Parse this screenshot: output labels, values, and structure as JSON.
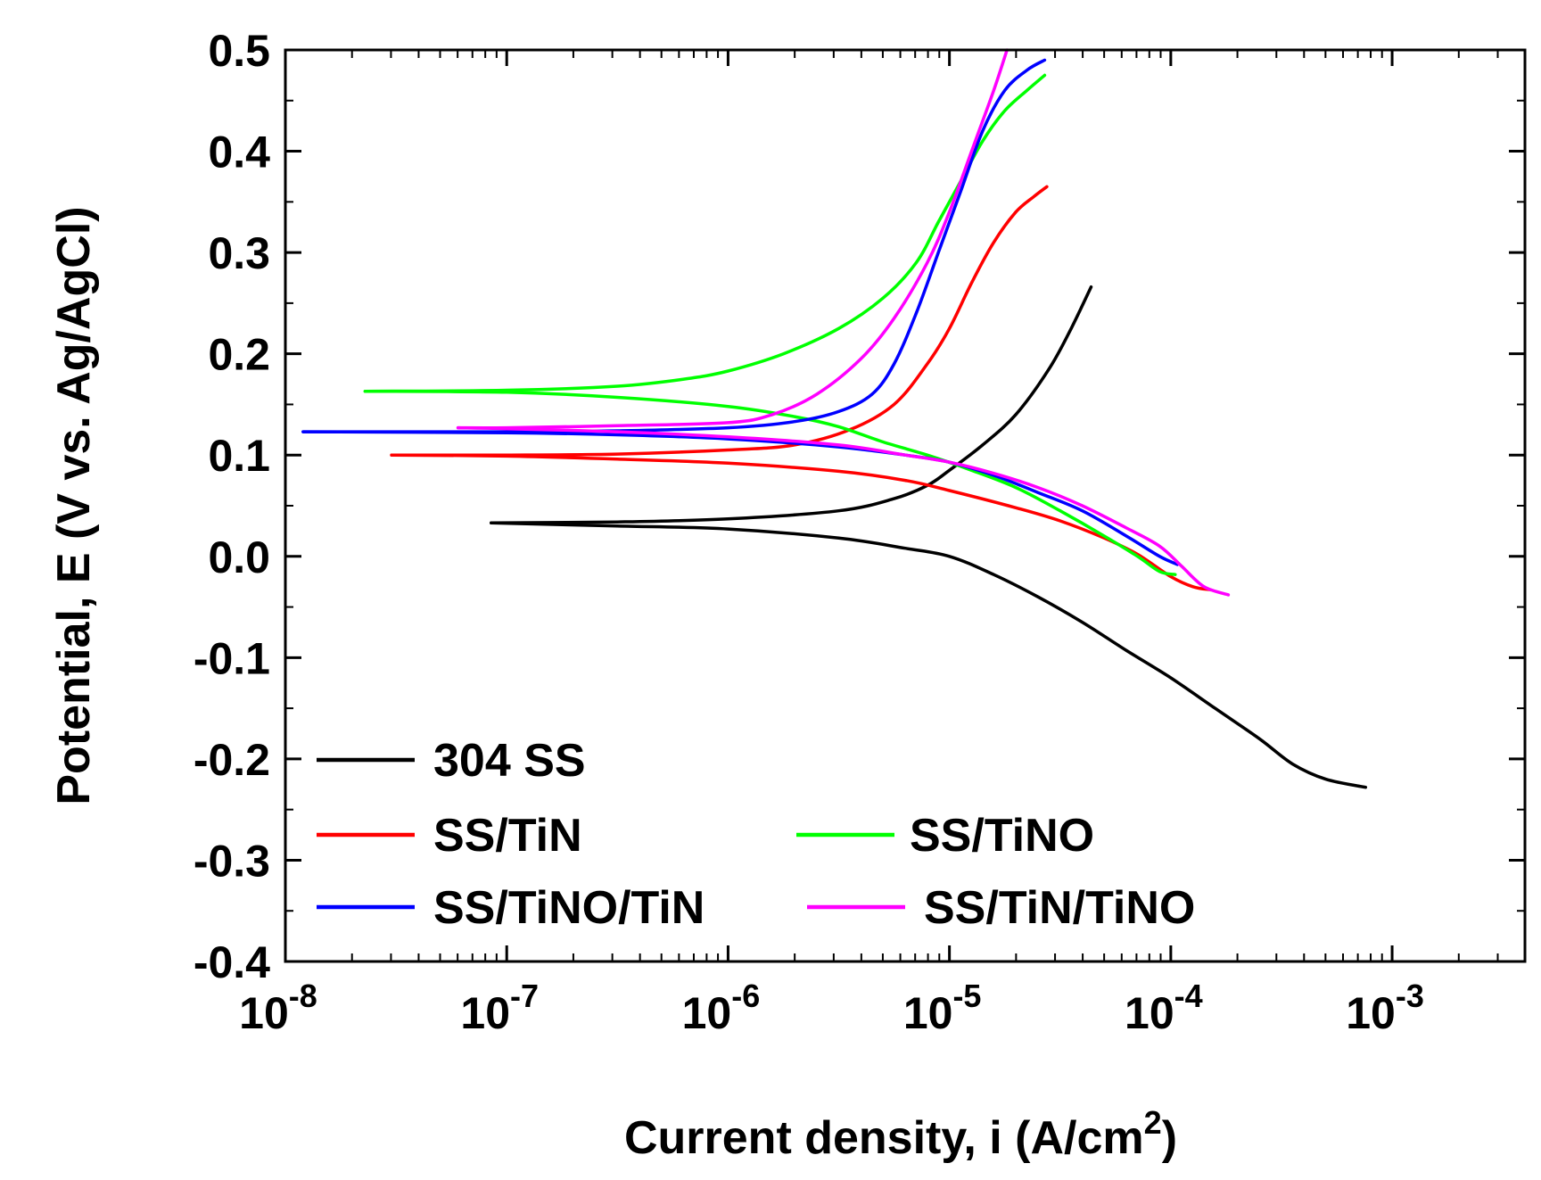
{
  "chart_data": {
    "type": "line",
    "title": "",
    "xlabel": "Current density, i (A/cm",
    "xlabel_sup": "2",
    "xlabel_end": ")",
    "ylabel": "Potential, E (V vs. Ag/AgCl)",
    "xscale": "log",
    "xlim_log10": [
      -8,
      -2.4
    ],
    "ylim": [
      -0.4,
      0.5
    ],
    "x_ticks": [
      {
        "base": "10",
        "exp": "-8",
        "log": -8
      },
      {
        "base": "10",
        "exp": "-7",
        "log": -7
      },
      {
        "base": "10",
        "exp": "-6",
        "log": -6
      },
      {
        "base": "10",
        "exp": "-5",
        "log": -5
      },
      {
        "base": "10",
        "exp": "-4",
        "log": -4
      },
      {
        "base": "10",
        "exp": "-3",
        "log": -3
      }
    ],
    "y_ticks": [
      {
        "label": "0.5",
        "value": 0.5
      },
      {
        "label": "0.4",
        "value": 0.4
      },
      {
        "label": "0.3",
        "value": 0.3
      },
      {
        "label": "0.2",
        "value": 0.2
      },
      {
        "label": "0.1",
        "value": 0.1
      },
      {
        "label": "0.0",
        "value": 0.0
      },
      {
        "label": "-0.1",
        "value": -0.1
      },
      {
        "label": "-0.2",
        "value": -0.2
      },
      {
        "label": "-0.3",
        "value": -0.3
      },
      {
        "label": "-0.4",
        "value": -0.4
      }
    ],
    "legend_position": "lower-left",
    "series": [
      {
        "name": "304 SS",
        "color": "#000000",
        "anodic": [
          [
            -7.07,
            0.033
          ],
          [
            -6.5,
            0.034
          ],
          [
            -6.0,
            0.037
          ],
          [
            -5.5,
            0.045
          ],
          [
            -5.25,
            0.057
          ],
          [
            -5.1,
            0.07
          ],
          [
            -5.0,
            0.085
          ],
          [
            -4.85,
            0.11
          ],
          [
            -4.7,
            0.14
          ],
          [
            -4.55,
            0.185
          ],
          [
            -4.45,
            0.225
          ],
          [
            -4.36,
            0.266
          ]
        ],
        "cathodic": [
          [
            -7.07,
            0.033
          ],
          [
            -6.5,
            0.03
          ],
          [
            -6.0,
            0.027
          ],
          [
            -5.5,
            0.018
          ],
          [
            -5.2,
            0.008
          ],
          [
            -5.0,
            0.0
          ],
          [
            -4.8,
            -0.018
          ],
          [
            -4.6,
            -0.04
          ],
          [
            -4.4,
            -0.065
          ],
          [
            -4.2,
            -0.093
          ],
          [
            -4.0,
            -0.12
          ],
          [
            -3.8,
            -0.15
          ],
          [
            -3.6,
            -0.18
          ],
          [
            -3.45,
            -0.205
          ],
          [
            -3.3,
            -0.22
          ],
          [
            -3.12,
            -0.228
          ]
        ]
      },
      {
        "name": "SS/TiN",
        "color": "#ff0000",
        "anodic": [
          [
            -7.52,
            0.1
          ],
          [
            -7.0,
            0.1
          ],
          [
            -6.5,
            0.101
          ],
          [
            -6.0,
            0.105
          ],
          [
            -5.7,
            0.11
          ],
          [
            -5.45,
            0.125
          ],
          [
            -5.25,
            0.15
          ],
          [
            -5.1,
            0.19
          ],
          [
            -5.0,
            0.225
          ],
          [
            -4.9,
            0.27
          ],
          [
            -4.8,
            0.31
          ],
          [
            -4.7,
            0.34
          ],
          [
            -4.62,
            0.355
          ],
          [
            -4.56,
            0.365
          ]
        ],
        "cathodic": [
          [
            -7.52,
            0.1
          ],
          [
            -7.0,
            0.099
          ],
          [
            -6.5,
            0.096
          ],
          [
            -6.0,
            0.092
          ],
          [
            -5.5,
            0.084
          ],
          [
            -5.2,
            0.075
          ],
          [
            -5.0,
            0.065
          ],
          [
            -4.7,
            0.048
          ],
          [
            -4.5,
            0.035
          ],
          [
            -4.3,
            0.018
          ],
          [
            -4.15,
            0.002
          ],
          [
            -4.0,
            -0.02
          ],
          [
            -3.9,
            -0.03
          ],
          [
            -3.82,
            -0.033
          ]
        ]
      },
      {
        "name": "SS/TiNO",
        "color": "#00ff00",
        "anodic": [
          [
            -7.64,
            0.163
          ],
          [
            -7.0,
            0.164
          ],
          [
            -6.5,
            0.168
          ],
          [
            -6.2,
            0.175
          ],
          [
            -6.0,
            0.183
          ],
          [
            -5.75,
            0.2
          ],
          [
            -5.5,
            0.225
          ],
          [
            -5.3,
            0.255
          ],
          [
            -5.15,
            0.29
          ],
          [
            -5.05,
            0.33
          ],
          [
            -4.95,
            0.37
          ],
          [
            -4.85,
            0.41
          ],
          [
            -4.75,
            0.44
          ],
          [
            -4.65,
            0.46
          ],
          [
            -4.57,
            0.475
          ]
        ],
        "cathodic": [
          [
            -7.64,
            0.163
          ],
          [
            -7.0,
            0.162
          ],
          [
            -6.5,
            0.157
          ],
          [
            -6.0,
            0.148
          ],
          [
            -5.7,
            0.138
          ],
          [
            -5.5,
            0.128
          ],
          [
            -5.3,
            0.113
          ],
          [
            -5.1,
            0.1
          ],
          [
            -4.9,
            0.085
          ],
          [
            -4.7,
            0.068
          ],
          [
            -4.5,
            0.045
          ],
          [
            -4.3,
            0.02
          ],
          [
            -4.15,
            0.0
          ],
          [
            -4.05,
            -0.015
          ],
          [
            -3.98,
            -0.018
          ]
        ]
      },
      {
        "name": "SS/TiNO/TiN",
        "color": "#0000ff",
        "anodic": [
          [
            -7.92,
            0.123
          ],
          [
            -7.0,
            0.123
          ],
          [
            -6.5,
            0.124
          ],
          [
            -6.0,
            0.127
          ],
          [
            -5.7,
            0.133
          ],
          [
            -5.5,
            0.143
          ],
          [
            -5.35,
            0.16
          ],
          [
            -5.25,
            0.19
          ],
          [
            -5.15,
            0.24
          ],
          [
            -5.05,
            0.3
          ],
          [
            -4.95,
            0.36
          ],
          [
            -4.85,
            0.42
          ],
          [
            -4.75,
            0.46
          ],
          [
            -4.65,
            0.48
          ],
          [
            -4.57,
            0.49
          ]
        ],
        "cathodic": [
          [
            -7.92,
            0.123
          ],
          [
            -7.0,
            0.122
          ],
          [
            -6.5,
            0.12
          ],
          [
            -6.0,
            0.116
          ],
          [
            -5.5,
            0.108
          ],
          [
            -5.2,
            0.1
          ],
          [
            -5.0,
            0.093
          ],
          [
            -4.8,
            0.08
          ],
          [
            -4.6,
            0.063
          ],
          [
            -4.4,
            0.045
          ],
          [
            -4.2,
            0.02
          ],
          [
            -4.05,
            0.0
          ],
          [
            -3.97,
            -0.008
          ]
        ]
      },
      {
        "name": "SS/TiN/TiNO",
        "color": "#ff00ff",
        "anodic": [
          [
            -7.22,
            0.127
          ],
          [
            -7.0,
            0.127
          ],
          [
            -6.5,
            0.129
          ],
          [
            -6.0,
            0.132
          ],
          [
            -5.8,
            0.14
          ],
          [
            -5.6,
            0.16
          ],
          [
            -5.4,
            0.195
          ],
          [
            -5.25,
            0.235
          ],
          [
            -5.1,
            0.29
          ],
          [
            -5.0,
            0.34
          ],
          [
            -4.9,
            0.4
          ],
          [
            -4.8,
            0.46
          ],
          [
            -4.74,
            0.5
          ]
        ],
        "cathodic": [
          [
            -7.22,
            0.127
          ],
          [
            -7.0,
            0.126
          ],
          [
            -6.5,
            0.123
          ],
          [
            -6.0,
            0.118
          ],
          [
            -5.5,
            0.11
          ],
          [
            -5.2,
            0.1
          ],
          [
            -5.0,
            0.093
          ],
          [
            -4.8,
            0.082
          ],
          [
            -4.6,
            0.068
          ],
          [
            -4.4,
            0.05
          ],
          [
            -4.2,
            0.028
          ],
          [
            -4.05,
            0.01
          ],
          [
            -3.95,
            -0.01
          ],
          [
            -3.85,
            -0.03
          ],
          [
            -3.74,
            -0.038
          ]
        ]
      }
    ]
  }
}
